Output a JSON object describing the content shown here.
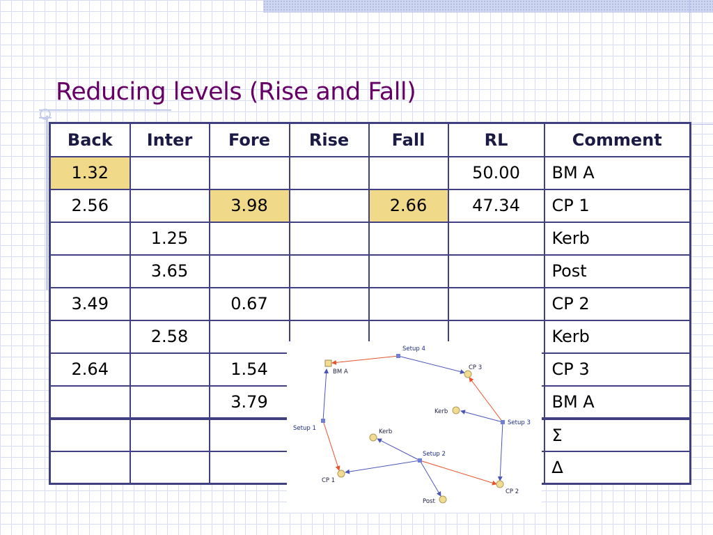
{
  "slide": {
    "title": "Reducing levels (Rise and Fall)"
  },
  "table": {
    "headers": [
      "Back",
      "Inter",
      "Fore",
      "Rise",
      "Fall",
      "RL",
      "Comment"
    ],
    "rows": [
      [
        "1.32",
        "",
        "",
        "",
        "",
        "50.00",
        "BM A"
      ],
      [
        "2.56",
        "",
        "3.98",
        "",
        "2.66",
        "47.34",
        "CP 1"
      ],
      [
        "",
        "1.25",
        "",
        "",
        "",
        "",
        "Kerb"
      ],
      [
        "",
        "3.65",
        "",
        "",
        "",
        "",
        "Post"
      ],
      [
        "3.49",
        "",
        "0.67",
        "",
        "",
        "",
        "CP 2"
      ],
      [
        "",
        "2.58",
        "",
        "",
        "",
        "",
        "Kerb"
      ],
      [
        "2.64",
        "",
        "1.54",
        "",
        "",
        "",
        "CP 3"
      ],
      [
        "",
        "",
        "3.79",
        "",
        "",
        "",
        "BM A"
      ],
      [
        "",
        "",
        "",
        "",
        "",
        "",
        "Σ"
      ],
      [
        "",
        "",
        "",
        "",
        "",
        "",
        "∆"
      ]
    ],
    "highlight_color": "#f1d98a",
    "accent_red": "#ff2200"
  },
  "diagram": {
    "labels": {
      "setup4": "Setup 4",
      "bm_a": "BM A",
      "cp3": "CP 3",
      "kerb_upper": "Kerb",
      "setup3": "Setup 3",
      "setup1": "Setup 1",
      "kerb_lower": "Kerb",
      "setup2": "Setup 2",
      "cp1": "CP 1",
      "cp2": "CP 2",
      "post": "Post"
    },
    "colors": {
      "back_sight": "#e8522a",
      "fore_sight": "#4a55b8",
      "setup": "#6f7fd8",
      "point": "#f2dc8f"
    }
  }
}
